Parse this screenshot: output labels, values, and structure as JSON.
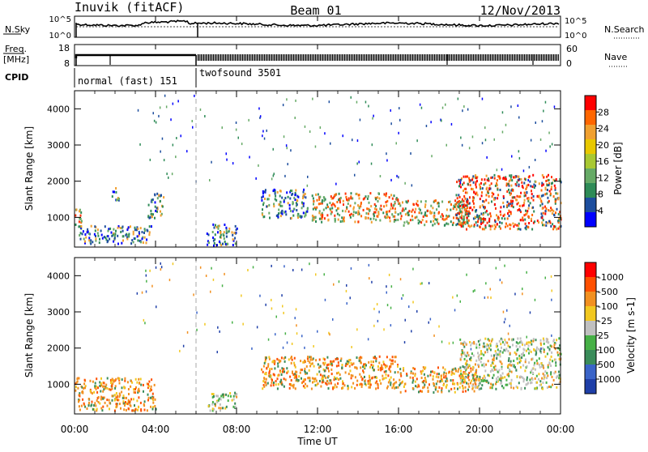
{
  "header": {
    "station": "Inuvik (fitACF)",
    "beam": "Beam 01",
    "date": "12/Nov/2013"
  },
  "strips": {
    "nsky_label": "N.Sky",
    "nsky_ticks": [
      "10^5",
      "10^0"
    ],
    "nsearch_label": "N.Search",
    "nsearch_ticks": [
      "10^5",
      "10^0"
    ],
    "freq_label_1": "Freq.",
    "freq_label_2": "[MHz]",
    "freq_ticks": [
      "18",
      "8"
    ],
    "nave_label": "Nave",
    "nave_ticks": [
      "60",
      "0"
    ],
    "cpid_label": "CPID",
    "cpid_modes": [
      {
        "name": "normal (fast) 151",
        "start": "00:00",
        "end": "06:00"
      },
      {
        "name": "twofsound 3501",
        "start": "06:00",
        "end": "24:00"
      }
    ]
  },
  "chart_data": [
    {
      "type": "heatmap",
      "panel": "power",
      "ylabel": "Slant Range [km]",
      "ylim": [
        180,
        4500
      ],
      "yticks": [
        "1000",
        "2000",
        "3000",
        "4000"
      ],
      "xlim_hours": [
        0,
        24
      ],
      "colorbar": {
        "label": "Power [dB]",
        "ticks": [
          "4",
          "8",
          "12",
          "16",
          "20",
          "24",
          "28"
        ],
        "colors": [
          "#0000ff",
          "#1d4e9e",
          "#2e8b57",
          "#66aa66",
          "#a8c832",
          "#e8c800",
          "#f0a030",
          "#ff6600",
          "#ff0000"
        ]
      },
      "scatter_regions": [
        {
          "t0": 0.0,
          "t1": 0.4,
          "r0": 750,
          "r1": 1250,
          "level": "high"
        },
        {
          "t0": 0.2,
          "t1": 3.8,
          "r0": 300,
          "r1": 800,
          "level": "mid"
        },
        {
          "t0": 1.8,
          "t1": 2.2,
          "r0": 1500,
          "r1": 1900,
          "level": "mid"
        },
        {
          "t0": 3.6,
          "t1": 4.4,
          "r0": 1000,
          "r1": 1700,
          "level": "mid"
        },
        {
          "t0": 6.5,
          "t1": 8.0,
          "r0": 250,
          "r1": 850,
          "level": "mid"
        },
        {
          "t0": 9.2,
          "t1": 11.5,
          "r0": 1000,
          "r1": 1800,
          "level": "mid"
        },
        {
          "t0": 11.7,
          "t1": 16.0,
          "r0": 900,
          "r1": 1700,
          "level": "high"
        },
        {
          "t0": 16.0,
          "t1": 19.5,
          "r0": 800,
          "r1": 1500,
          "level": "high"
        },
        {
          "t0": 18.8,
          "t1": 24.0,
          "r0": 700,
          "r1": 2200,
          "level": "max"
        }
      ]
    },
    {
      "type": "heatmap",
      "panel": "velocity",
      "ylabel": "Slant Range [km]",
      "ylim": [
        180,
        4500
      ],
      "yticks": [
        "1000",
        "2000",
        "3000",
        "4000"
      ],
      "xlim_hours": [
        0,
        24
      ],
      "colorbar": {
        "label": "Velocity [m s-1]",
        "ticks": [
          "1000",
          "500",
          "100",
          "25",
          "-25",
          "-100",
          "-500",
          "-1000"
        ],
        "colors": [
          "#1f3fa8",
          "#3a64c8",
          "#3a8c5a",
          "#46b046",
          "#c0c0c0",
          "#f2c820",
          "#f29020",
          "#ff5000",
          "#ff0000"
        ]
      },
      "scatter_regions": [
        {
          "t0": 0.0,
          "t1": 4.0,
          "r0": 300,
          "r1": 1200,
          "level": "away"
        },
        {
          "t0": 6.5,
          "t1": 8.0,
          "r0": 300,
          "r1": 800,
          "level": "slow"
        },
        {
          "t0": 9.2,
          "t1": 16.0,
          "r0": 900,
          "r1": 1800,
          "level": "away"
        },
        {
          "t0": 16.0,
          "t1": 20.0,
          "r0": 800,
          "r1": 1500,
          "level": "away"
        },
        {
          "t0": 19.0,
          "t1": 24.0,
          "r0": 900,
          "r1": 2300,
          "level": "slow"
        }
      ]
    }
  ],
  "x_axis": {
    "label": "Time UT",
    "ticks": [
      "00:00",
      "04:00",
      "08:00",
      "12:00",
      "16:00",
      "20:00",
      "00:00"
    ]
  }
}
